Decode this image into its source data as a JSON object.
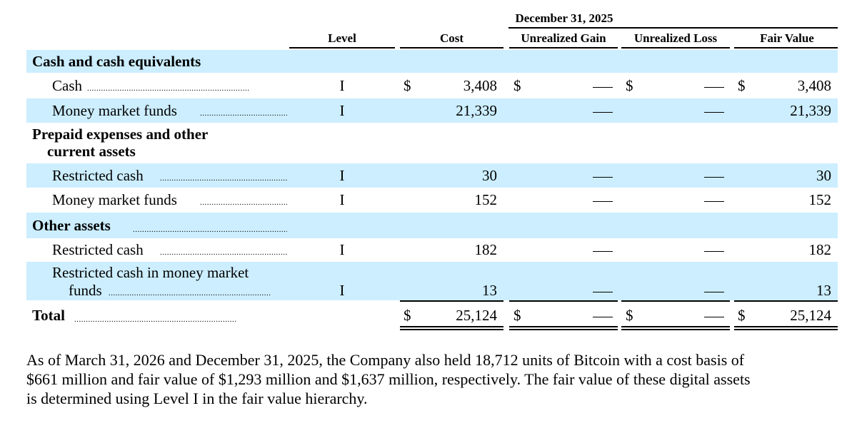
{
  "header": {
    "period": "December 31, 2025",
    "columns": [
      "Level",
      "Cost",
      "Unrealized Gain",
      "Unrealized Loss",
      "Fair Value"
    ]
  },
  "sections": [
    {
      "title": "Cash and cash equivalents",
      "rows": [
        {
          "label": "Cash",
          "level": "I",
          "cost": "3,408",
          "gain": "—",
          "loss": "—",
          "fair_value": "3,408",
          "currency": "$"
        },
        {
          "label": "Money market funds",
          "level": "I",
          "cost": "21,339",
          "gain": "—",
          "loss": "—",
          "fair_value": "21,339"
        }
      ]
    },
    {
      "title_line1": "Prepaid expenses and other",
      "title_line2": "current assets",
      "rows": [
        {
          "label": "Restricted cash",
          "level": "I",
          "cost": "30",
          "gain": "—",
          "loss": "—",
          "fair_value": "30"
        },
        {
          "label": "Money market funds",
          "level": "I",
          "cost": "152",
          "gain": "—",
          "loss": "—",
          "fair_value": "152"
        }
      ]
    },
    {
      "title": "Other assets",
      "rows": [
        {
          "label": "Restricted cash",
          "level": "I",
          "cost": "182",
          "gain": "—",
          "loss": "—",
          "fair_value": "182"
        },
        {
          "label_line1": "Restricted cash in money market",
          "label_line2": "funds",
          "level": "I",
          "cost": "13",
          "gain": "—",
          "loss": "—",
          "fair_value": "13"
        }
      ]
    }
  ],
  "total": {
    "label": "Total",
    "currency": "$",
    "cost": "25,124",
    "gain": "—",
    "loss": "—",
    "fair_value": "25,124"
  },
  "dots": "......................................................................",
  "footnote": [
    "As of March 31, 2026 and December 31, 2025, the Company also held 18,712 units of Bitcoin with a cost basis of",
    "$661 million and fair value of $1,293 million and $1,637 million, respectively. The fair value of these digital assets",
    "is determined using Level I in the fair value hierarchy."
  ]
}
